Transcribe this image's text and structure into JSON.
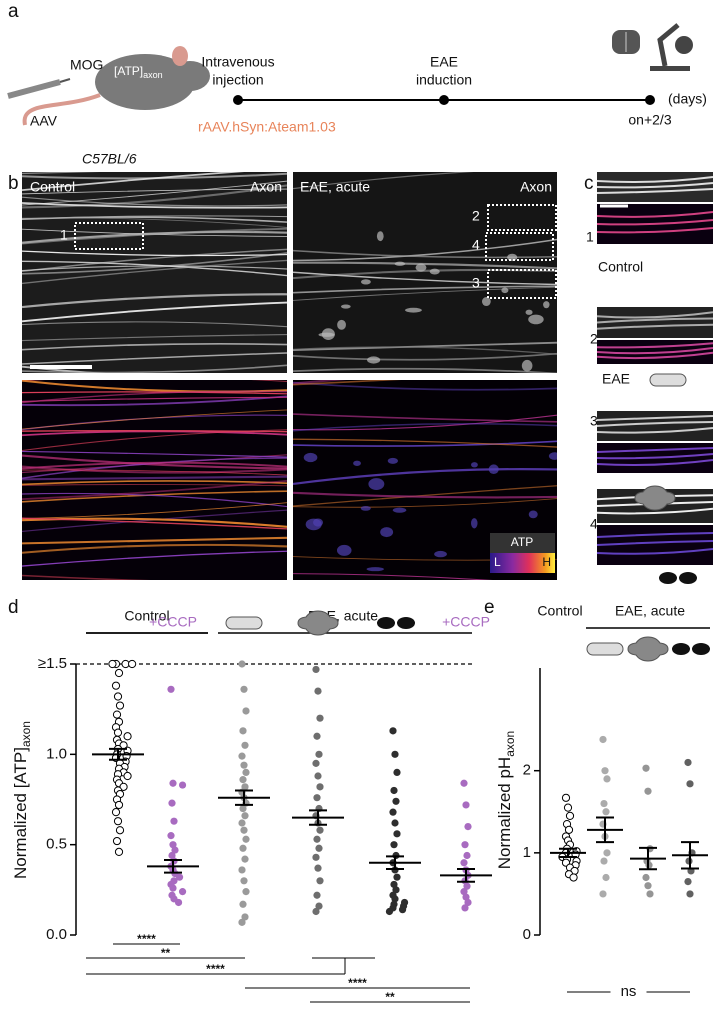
{
  "panel_a": {
    "label": "a",
    "mog": "MOG",
    "atp": "[ATP]",
    "atp_sub": "axon",
    "aav": "AAV",
    "strain": "C57BL/6",
    "construct": "rAAV.hSyn:Ateam1.03",
    "timeline": [
      {
        "lines": [
          "Intravenous",
          "injection"
        ]
      },
      {
        "lines": [
          "EAE",
          "induction"
        ]
      },
      {
        "lines": [
          "on+2/3"
        ]
      }
    ],
    "unit": "(days)"
  },
  "panel_b": {
    "label": "b",
    "tiles": [
      "Control",
      "Axon",
      "EAE, acute",
      "Axon"
    ],
    "rois": [
      "1",
      "2",
      "4",
      "3"
    ],
    "colorbar": {
      "title": "ATP",
      "low": "L",
      "high": "H"
    }
  },
  "panel_c": {
    "label": "c",
    "rows": [
      "1",
      "2",
      "3",
      "4"
    ],
    "captions": [
      "Control",
      "EAE"
    ]
  },
  "chart_data": [
    {
      "type": "strip",
      "panel_label": "d",
      "ylabel": "Normalized [ATP]",
      "ylabel_sub": "axon",
      "group_labels": [
        "Control",
        "EAE, acute"
      ],
      "ylim": [
        0,
        1.5
      ],
      "yticks": [
        {
          "value": 0,
          "label": "0.0"
        },
        {
          "value": 0.5,
          "label": "0.5"
        },
        {
          "value": 1,
          "label": "1.0"
        },
        {
          "value": 1.5,
          "label": "≥1.5"
        }
      ],
      "series": [
        {
          "color": "#000000",
          "marker": "open",
          "mean": 1.0,
          "sem": 0.03,
          "values": [
            1.5,
            1.5,
            1.5,
            1.5,
            1.45,
            1.38,
            1.32,
            1.27,
            1.22,
            1.18,
            1.15,
            1.12,
            1.1,
            1.08,
            1.06,
            1.05,
            1.03,
            1.02,
            1.0,
            0.99,
            0.98,
            0.96,
            0.95,
            0.93,
            0.92,
            0.9,
            0.89,
            0.88,
            0.86,
            0.84,
            0.82,
            0.8,
            0.78,
            0.75,
            0.72,
            0.68,
            0.63,
            0.58,
            0.52,
            0.46
          ]
        },
        {
          "name": "+CCCP",
          "color": "#a86bc0",
          "marker": "filled",
          "mean": 0.38,
          "sem": 0.035,
          "values": [
            1.36,
            0.84,
            0.83,
            0.73,
            0.63,
            0.55,
            0.5,
            0.47,
            0.44,
            0.41,
            0.38,
            0.36,
            0.34,
            0.32,
            0.3,
            0.28,
            0.26,
            0.24,
            0.22,
            0.2,
            0.18
          ]
        },
        {
          "color": "#9a9a9a",
          "marker": "filled",
          "mean": 0.76,
          "sem": 0.04,
          "values": [
            1.5,
            1.36,
            1.24,
            1.13,
            1.05,
            0.99,
            0.94,
            0.9,
            0.86,
            0.82,
            0.79,
            0.76,
            0.73,
            0.7,
            0.66,
            0.62,
            0.58,
            0.53,
            0.48,
            0.42,
            0.36,
            0.3,
            0.24,
            0.17,
            0.1,
            0.07
          ]
        },
        {
          "color": "#6e6e6e",
          "marker": "filled",
          "mean": 0.65,
          "sem": 0.04,
          "values": [
            1.47,
            1.35,
            1.2,
            1.1,
            1.0,
            0.95,
            0.88,
            0.82,
            0.76,
            0.7,
            0.66,
            0.62,
            0.58,
            0.53,
            0.48,
            0.43,
            0.37,
            0.3,
            0.22,
            0.16,
            0.13
          ]
        },
        {
          "color": "#2e2e2e",
          "marker": "filled",
          "mean": 0.4,
          "sem": 0.035,
          "values": [
            1.13,
            1.0,
            0.9,
            0.8,
            0.74,
            0.68,
            0.62,
            0.56,
            0.5,
            0.44,
            0.4,
            0.36,
            0.32,
            0.28,
            0.25,
            0.22,
            0.2,
            0.18,
            0.17,
            0.16,
            0.15,
            0.14,
            0.13
          ]
        },
        {
          "name": "+CCCP",
          "color": "#a86bc0",
          "marker": "filled",
          "mean": 0.33,
          "sem": 0.035,
          "values": [
            0.84,
            0.72,
            0.6,
            0.5,
            0.44,
            0.4,
            0.36,
            0.33,
            0.3,
            0.27,
            0.24,
            0.21,
            0.18,
            0.15
          ]
        }
      ],
      "significance": [
        "****",
        "**",
        "****",
        "****",
        "**"
      ]
    },
    {
      "type": "strip",
      "panel_label": "e",
      "ylabel": "Normalized pH",
      "ylabel_sub": "axon",
      "group_labels": [
        "Control",
        "EAE, acute"
      ],
      "ylim": [
        0,
        3.25
      ],
      "yticks": [
        0,
        1,
        2
      ],
      "series": [
        {
          "color": "#000000",
          "marker": "open",
          "mean": 1.0,
          "sem": 0.05,
          "values": [
            1.67,
            1.55,
            1.45,
            1.35,
            1.28,
            1.2,
            1.15,
            1.1,
            1.05,
            1.02,
            1.0,
            0.98,
            0.95,
            0.92,
            0.9,
            0.88,
            0.85,
            0.82,
            0.78,
            0.74,
            0.7
          ]
        },
        {
          "color": "#ababab",
          "marker": "filled",
          "mean": 1.28,
          "sem": 0.15,
          "values": [
            2.38,
            2.0,
            1.9,
            1.6,
            1.5,
            1.35,
            1.2,
            1.0,
            0.9,
            0.7,
            0.5
          ]
        },
        {
          "color": "#959595",
          "marker": "filled",
          "mean": 0.93,
          "sem": 0.13,
          "values": [
            2.03,
            1.75,
            1.05,
            0.9,
            0.85,
            0.7,
            0.6,
            0.5
          ]
        },
        {
          "color": "#616161",
          "marker": "filled",
          "mean": 0.97,
          "sem": 0.16,
          "values": [
            2.1,
            1.84,
            1.0,
            0.9,
            0.78,
            0.65,
            0.5
          ]
        }
      ],
      "significance": [
        "ns"
      ]
    }
  ]
}
